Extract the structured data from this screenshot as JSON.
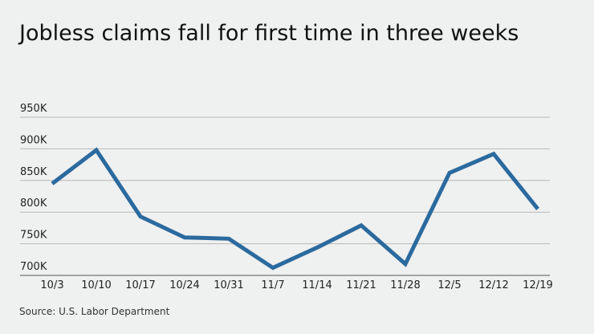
{
  "chart_data": {
    "type": "line",
    "title": "Jobless claims fall for first time in three weeks",
    "source": "Source: U.S. Labor Department",
    "categories": [
      "10/3",
      "10/10",
      "10/17",
      "10/24",
      "10/31",
      "11/7",
      "11/14",
      "11/21",
      "11/28",
      "12/5",
      "12/12",
      "12/19"
    ],
    "series": [
      {
        "name": "Jobless claims",
        "color": "#2b6a9e",
        "values": [
          845000,
          898000,
          793000,
          760000,
          758000,
          712000,
          744000,
          779000,
          718000,
          862000,
          892000,
          805000
        ]
      }
    ],
    "ylim": [
      700000,
      950000
    ],
    "yticks": [
      {
        "value": 700000,
        "label": "700K"
      },
      {
        "value": 750000,
        "label": "750K"
      },
      {
        "value": 800000,
        "label": "800K"
      },
      {
        "value": 850000,
        "label": "850K"
      },
      {
        "value": 900000,
        "label": "900K"
      },
      {
        "value": 950000,
        "label": "950K"
      }
    ],
    "grid": true
  }
}
